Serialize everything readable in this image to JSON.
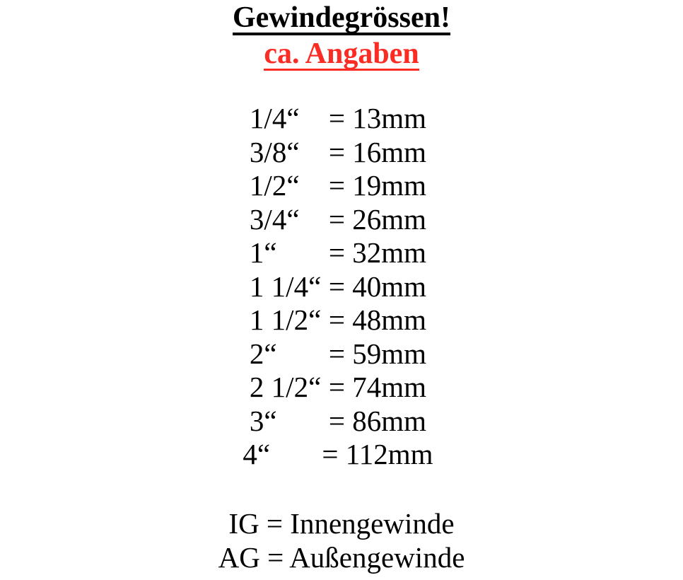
{
  "title": "Gewindegrössen!",
  "subtitle": "ca. Angaben",
  "table": {
    "rows": [
      {
        "size": "1/4“",
        "value": "= 13mm"
      },
      {
        "size": "3/8“",
        "value": "= 16mm"
      },
      {
        "size": "1/2“",
        "value": "= 19mm"
      },
      {
        "size": "3/4“",
        "value": "= 26mm"
      },
      {
        "size": "1“",
        "value": "= 32mm"
      },
      {
        "size": "1 1/4“",
        "value": "= 40mm"
      },
      {
        "size": "1 1/2“",
        "value": "= 48mm"
      },
      {
        "size": "2“",
        "value": "= 59mm"
      },
      {
        "size": "2 1/2“",
        "value": "= 74mm"
      },
      {
        "size": "3“",
        "value": "= 86mm"
      },
      {
        "size": "4“",
        "value": "= 112mm"
      }
    ]
  },
  "legend": {
    "line1": "IG = Innengewinde",
    "line2": "AG = Außengewinde"
  },
  "colors": {
    "text": "#000000",
    "accent_red": "#fb2c23",
    "background": "#ffffff"
  }
}
